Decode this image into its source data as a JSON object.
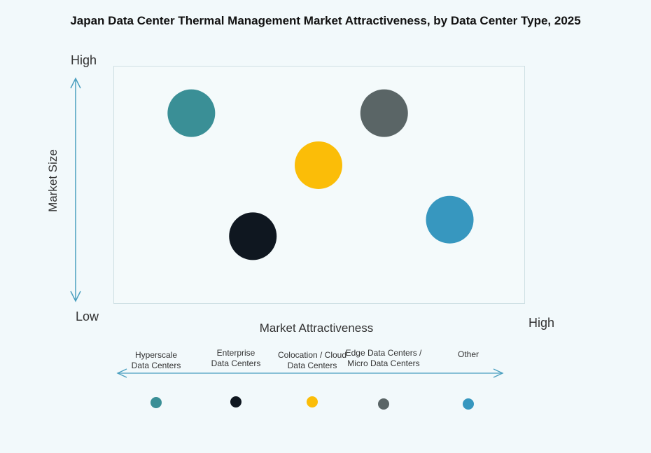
{
  "chart_data": {
    "type": "scatter",
    "title": "Japan Data Center Thermal Management Market Attractiveness,  by Data Center Type, 2025",
    "xlabel": "Market Attractiveness",
    "ylabel": "Market Size",
    "x_axis": {
      "low": "Low",
      "high": "High"
    },
    "y_axis": {
      "low": "Low",
      "high": "High"
    },
    "qualitative_range": [
      0,
      100
    ],
    "series": [
      {
        "name": "Hyperscale Data Centers",
        "x": 19,
        "y": 80,
        "color": "#3a8f96"
      },
      {
        "name": "Enterprise Data Centers",
        "x": 34,
        "y": 28,
        "color": "#0f1720"
      },
      {
        "name": "Colocation / Cloud Data Centers",
        "x": 50,
        "y": 58,
        "color": "#fbbd08"
      },
      {
        "name": "Edge Data Centers / Micro Data Centers",
        "x": 66,
        "y": 80,
        "color": "#5a6566"
      },
      {
        "name": "Other",
        "x": 82,
        "y": 35,
        "color": "#3797bf"
      }
    ],
    "legend": {
      "position": "bottom",
      "labels": [
        [
          "Hyperscale",
          "Data Centers"
        ],
        [
          "Enterprise",
          "Data Centers"
        ],
        [
          "Colocation / Cloud",
          "Data Centers"
        ],
        [
          "Edge Data Centers /",
          "Micro Data Centers"
        ],
        [
          "Other"
        ]
      ]
    },
    "grid": false
  },
  "colors": {
    "arrow": "#4a9fbf",
    "plot_border": "#cfe0e4",
    "background": "#f2f9fb"
  }
}
